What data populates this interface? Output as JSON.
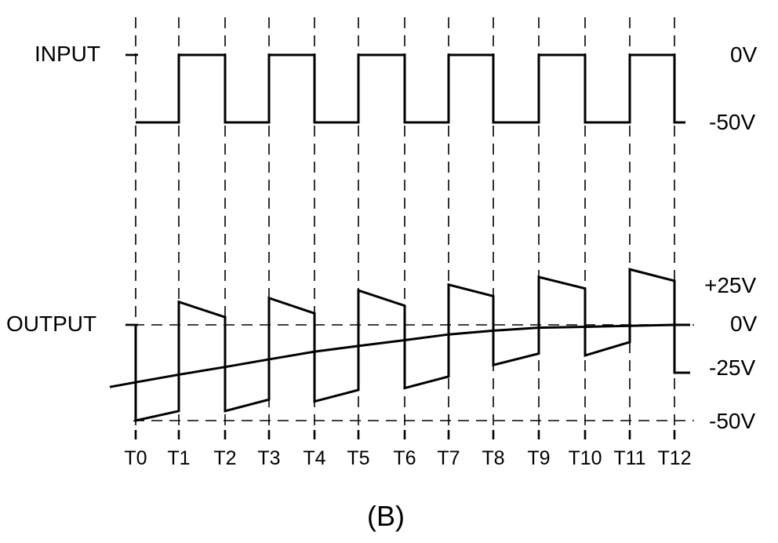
{
  "signals": {
    "input_label": "INPUT",
    "output_label": "OUTPUT"
  },
  "voltages": {
    "input_high": "0V",
    "input_low": "-50V",
    "out_plus25": "+25V",
    "out_zero": "0V",
    "out_minus25": "-25V",
    "out_minus50": "-50V"
  },
  "time_labels": [
    "T0",
    "T1",
    "T2",
    "T3",
    "T4",
    "T5",
    "T6",
    "T7",
    "T8",
    "T9",
    "T10",
    "T11",
    "T12"
  ],
  "caption": "(B)",
  "waveform": {
    "input_levels_V": [
      -50,
      0,
      -50,
      0,
      -50,
      0,
      -50,
      0,
      -50,
      0,
      -50,
      0
    ],
    "output_segments_V": [
      [
        -50,
        -45
      ],
      [
        12,
        4
      ],
      [
        -45,
        -39
      ],
      [
        14,
        6
      ],
      [
        -40,
        -34
      ],
      [
        18,
        10
      ],
      [
        -33,
        -27
      ],
      [
        21,
        15
      ],
      [
        -21,
        -15
      ],
      [
        25,
        19
      ],
      [
        -16,
        -9
      ],
      [
        29,
        23
      ]
    ],
    "output_end_V": -25,
    "average_curve_V": [
      -30,
      -26,
      -22,
      -18,
      -14,
      -11,
      -8,
      -5,
      -3,
      -1.5,
      -1,
      -0.5,
      0
    ]
  }
}
